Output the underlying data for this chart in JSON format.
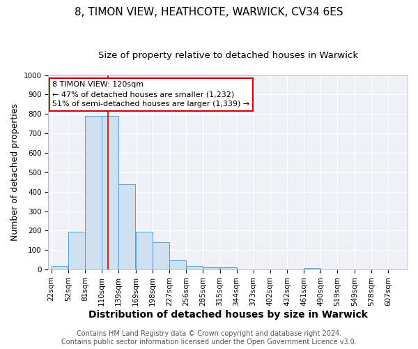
{
  "title": "8, TIMON VIEW, HEATHCOTE, WARWICK, CV34 6ES",
  "subtitle": "Size of property relative to detached houses in Warwick",
  "xlabel": "Distribution of detached houses by size in Warwick",
  "ylabel": "Number of detached properties",
  "bin_labels": [
    "22sqm",
    "52sqm",
    "81sqm",
    "110sqm",
    "139sqm",
    "169sqm",
    "198sqm",
    "227sqm",
    "256sqm",
    "285sqm",
    "315sqm",
    "344sqm",
    "373sqm",
    "402sqm",
    "432sqm",
    "461sqm",
    "490sqm",
    "519sqm",
    "549sqm",
    "578sqm",
    "607sqm"
  ],
  "bin_edges": [
    22,
    52,
    81,
    110,
    139,
    169,
    198,
    227,
    256,
    285,
    315,
    344,
    373,
    402,
    432,
    461,
    490,
    519,
    549,
    578,
    607
  ],
  "bar_heights": [
    20,
    195,
    790,
    790,
    440,
    195,
    140,
    48,
    18,
    12,
    10,
    0,
    0,
    0,
    0,
    8,
    0,
    0,
    0,
    0
  ],
  "bar_color": "#cfe0f0",
  "bar_edge_color": "#5b9bd5",
  "property_line_x": 120,
  "property_line_color": "#cc0000",
  "annotation_line1": "8 TIMON VIEW: 120sqm",
  "annotation_line2": "← 47% of detached houses are smaller (1,232)",
  "annotation_line3": "51% of semi-detached houses are larger (1,339) →",
  "annotation_box_color": "#cc0000",
  "ylim": [
    0,
    1000
  ],
  "background_color": "#eef2f7",
  "footer_text": "Contains HM Land Registry data © Crown copyright and database right 2024.\nContains public sector information licensed under the Open Government Licence v3.0.",
  "title_fontsize": 11,
  "subtitle_fontsize": 9.5,
  "xlabel_fontsize": 10,
  "ylabel_fontsize": 9,
  "tick_fontsize": 7.5,
  "annotation_fontsize": 8,
  "footer_fontsize": 7
}
